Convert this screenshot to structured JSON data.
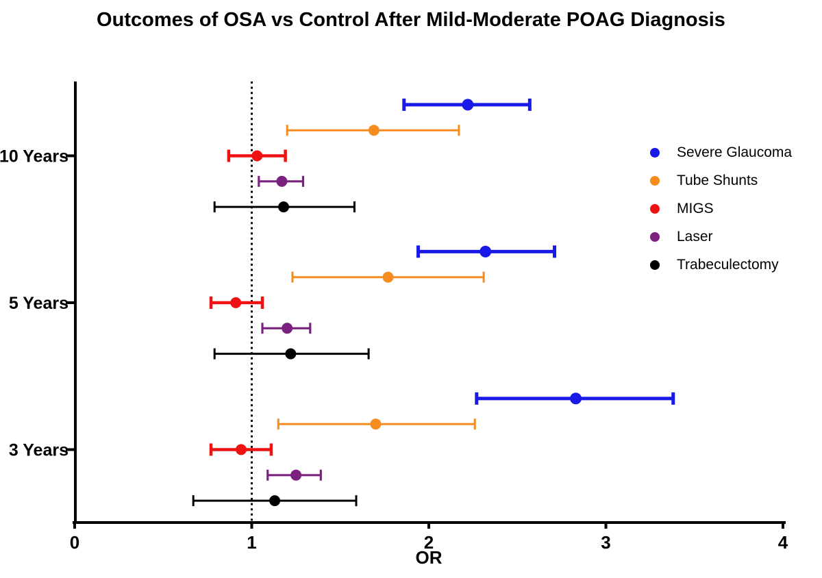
{
  "chart_data": {
    "type": "forest_plot",
    "title": "Outcomes of OSA vs Control After Mild-Moderate POAG Diagnosis",
    "xlabel": "OR",
    "xlim": [
      0,
      4
    ],
    "x_ticks": [
      0,
      1,
      2,
      3,
      4
    ],
    "x_tick_labels": [
      "0",
      "1",
      "2",
      "3",
      "4"
    ],
    "reference_line_x": 1,
    "grid": false,
    "legend_position": "right",
    "groups": [
      "10 Years",
      "5 Years",
      "3 Years"
    ],
    "series": [
      {
        "name": "Severe Glaucoma",
        "color": "#1A1AE8",
        "values": [
          {
            "group": "10 Years",
            "or": 2.22,
            "ci_low": 1.86,
            "ci_high": 2.57
          },
          {
            "group": "5 Years",
            "or": 2.32,
            "ci_low": 1.94,
            "ci_high": 2.71
          },
          {
            "group": "3 Years",
            "or": 2.83,
            "ci_low": 2.27,
            "ci_high": 3.38
          }
        ]
      },
      {
        "name": "Tube Shunts",
        "color": "#F68B1F",
        "values": [
          {
            "group": "10 Years",
            "or": 1.69,
            "ci_low": 1.2,
            "ci_high": 2.17
          },
          {
            "group": "5 Years",
            "or": 1.77,
            "ci_low": 1.23,
            "ci_high": 2.31
          },
          {
            "group": "3 Years",
            "or": 1.7,
            "ci_low": 1.15,
            "ci_high": 2.26
          }
        ]
      },
      {
        "name": "MIGS",
        "color": "#EF1212",
        "values": [
          {
            "group": "10 Years",
            "or": 1.03,
            "ci_low": 0.87,
            "ci_high": 1.19
          },
          {
            "group": "5 Years",
            "or": 0.91,
            "ci_low": 0.77,
            "ci_high": 1.06
          },
          {
            "group": "3 Years",
            "or": 0.94,
            "ci_low": 0.77,
            "ci_high": 1.11
          }
        ]
      },
      {
        "name": "Laser",
        "color": "#7D2181",
        "values": [
          {
            "group": "10 Years",
            "or": 1.17,
            "ci_low": 1.04,
            "ci_high": 1.29
          },
          {
            "group": "5 Years",
            "or": 1.2,
            "ci_low": 1.06,
            "ci_high": 1.33
          },
          {
            "group": "3 Years",
            "or": 1.25,
            "ci_low": 1.09,
            "ci_high": 1.39
          }
        ]
      },
      {
        "name": "Trabeculectomy",
        "color": "#000000",
        "values": [
          {
            "group": "10 Years",
            "or": 1.18,
            "ci_low": 0.79,
            "ci_high": 1.58
          },
          {
            "group": "5 Years",
            "or": 1.22,
            "ci_low": 0.79,
            "ci_high": 1.66
          },
          {
            "group": "3 Years",
            "or": 1.13,
            "ci_low": 0.67,
            "ci_high": 1.59
          }
        ]
      }
    ]
  }
}
